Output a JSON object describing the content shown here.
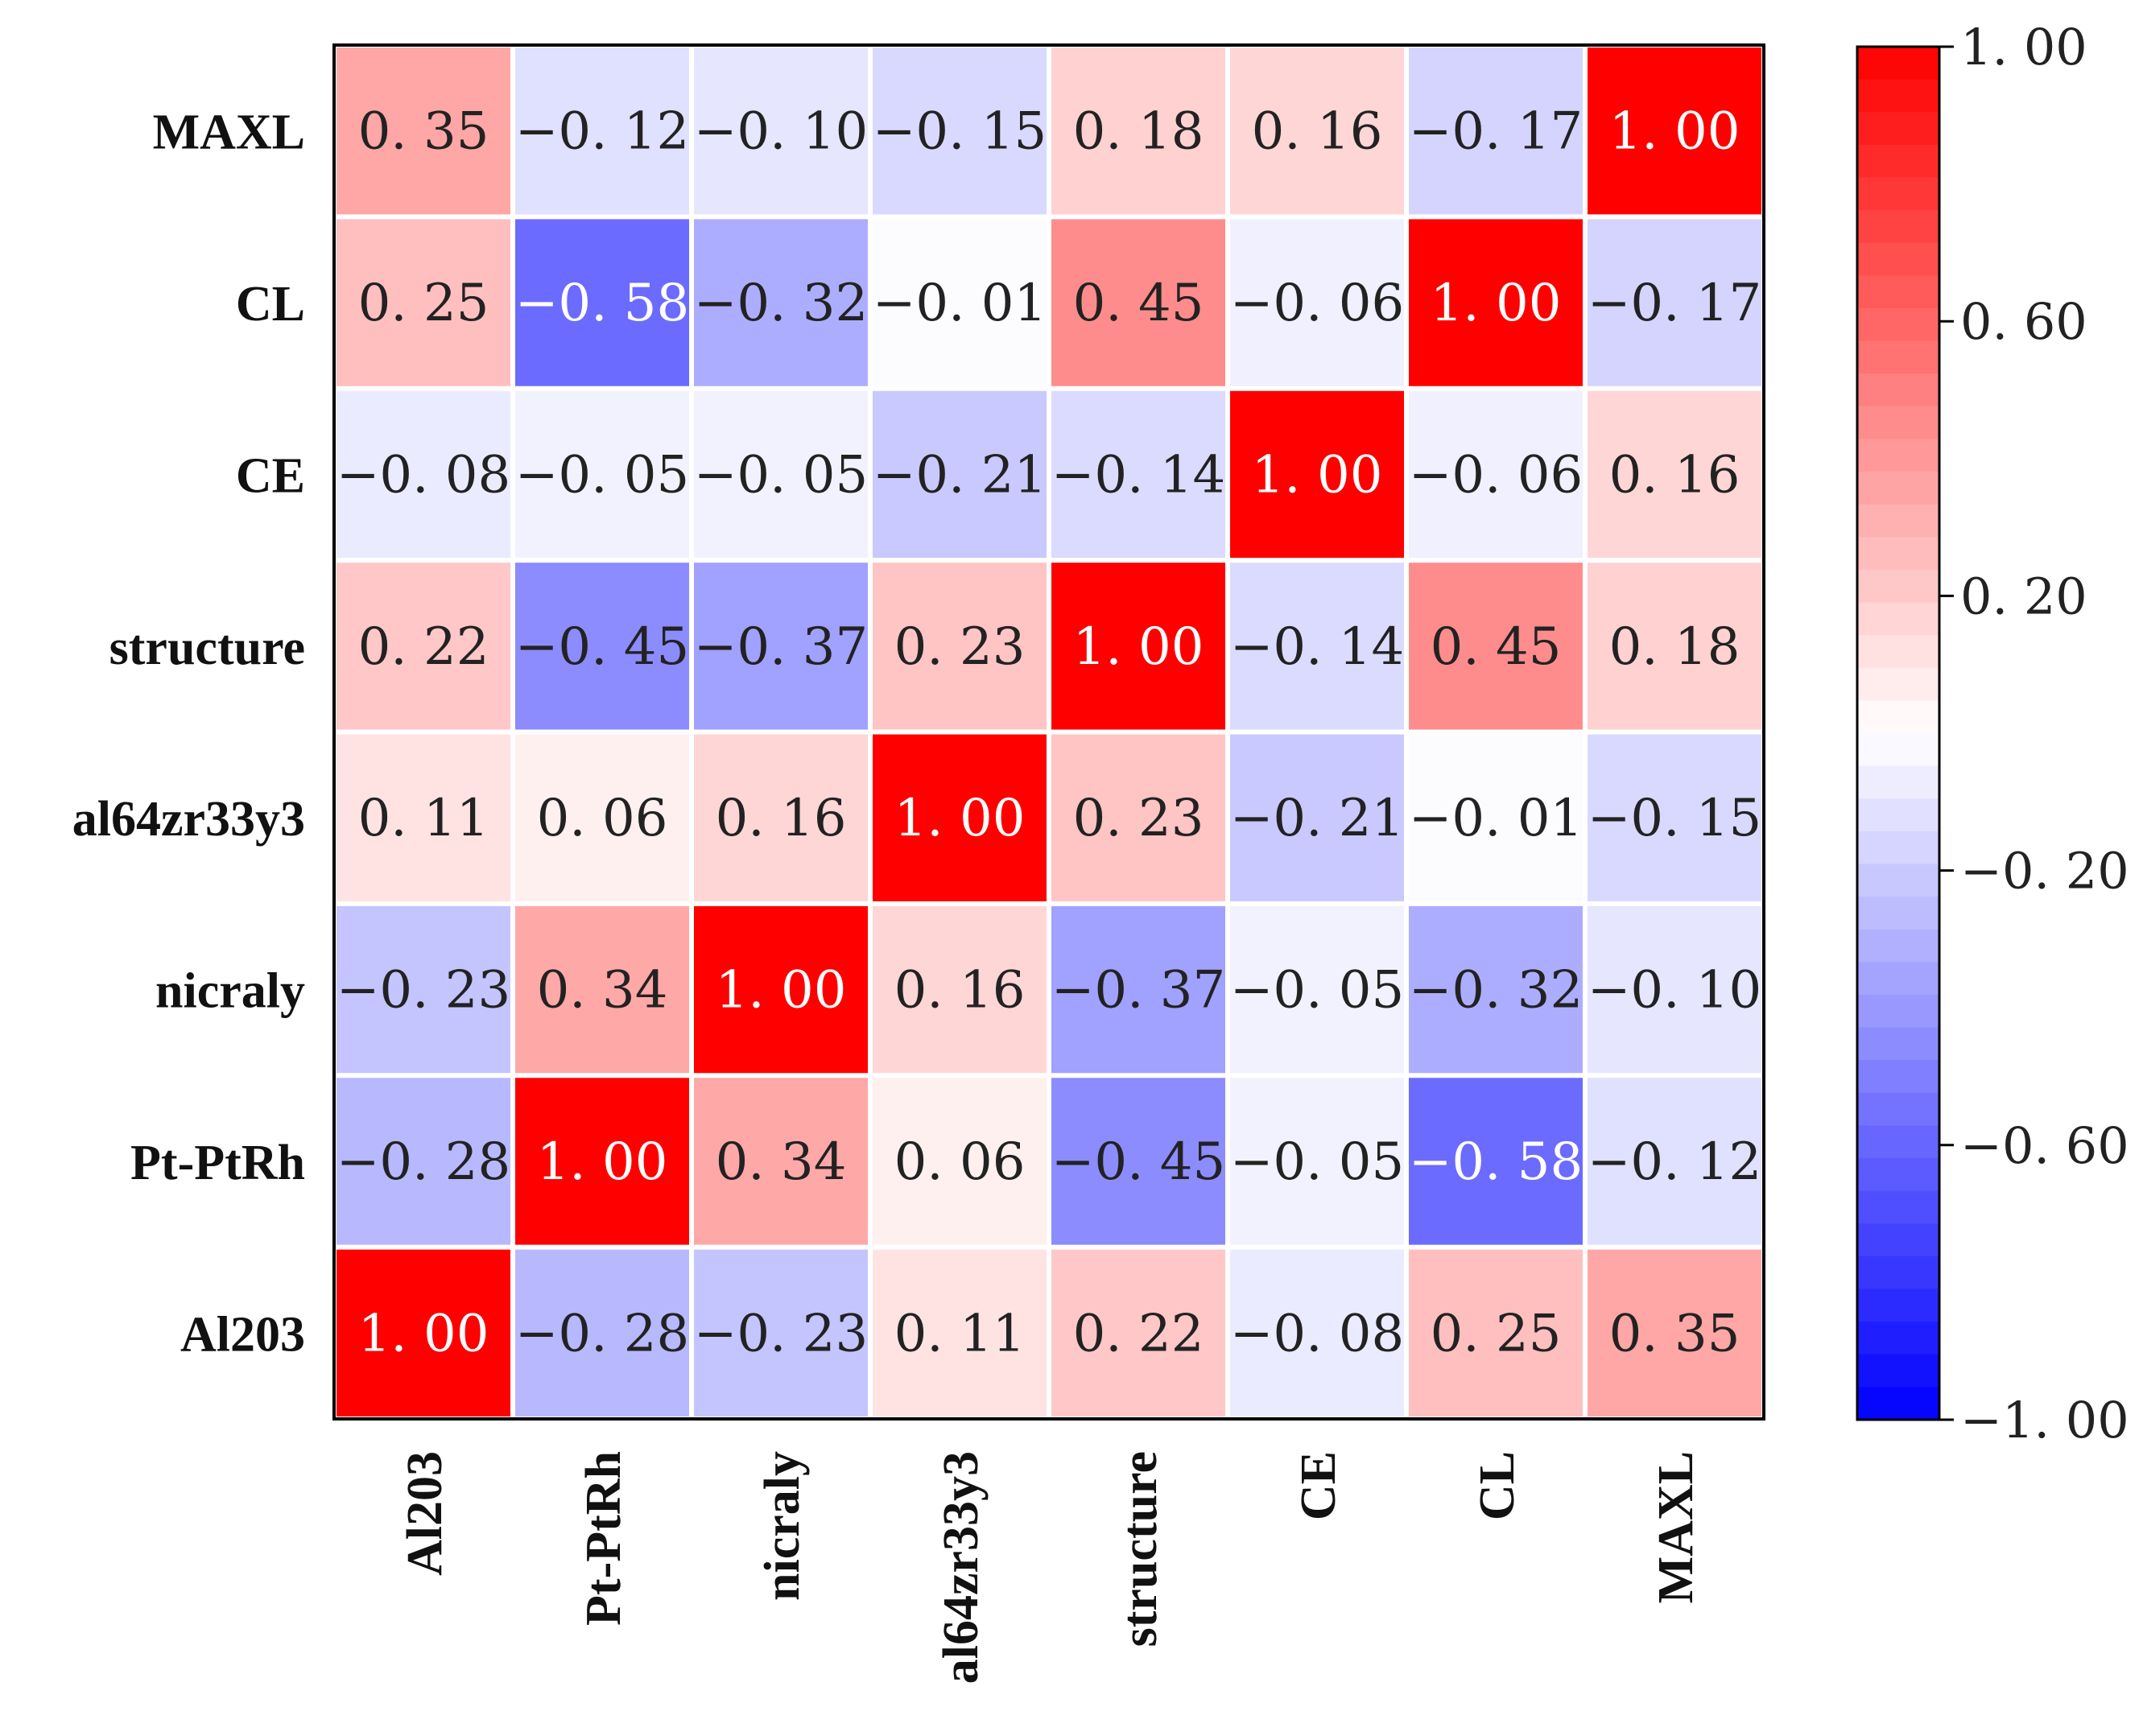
{
  "chart_data": {
    "type": "heatmap",
    "title": "",
    "xlabel": "",
    "ylabel": "",
    "labels": [
      "Al203",
      "Pt-PtRh",
      "nicraly",
      "al64zr33y3",
      "structure",
      "CE",
      "CL",
      "MAXL"
    ],
    "row_order_top_to_bottom": [
      "MAXL",
      "CL",
      "CE",
      "structure",
      "al64zr33y3",
      "nicraly",
      "Pt-PtRh",
      "Al203"
    ],
    "matrix": [
      [
        1.0,
        -0.28,
        -0.23,
        0.11,
        0.22,
        -0.08,
        0.25,
        0.35
      ],
      [
        -0.28,
        1.0,
        0.34,
        0.06,
        -0.45,
        -0.05,
        -0.58,
        -0.12
      ],
      [
        -0.23,
        0.34,
        1.0,
        0.16,
        -0.37,
        -0.05,
        -0.32,
        -0.1
      ],
      [
        0.11,
        0.06,
        0.16,
        1.0,
        0.23,
        -0.21,
        -0.01,
        -0.15
      ],
      [
        0.22,
        -0.45,
        -0.37,
        0.23,
        1.0,
        -0.14,
        0.45,
        0.18
      ],
      [
        -0.08,
        -0.05,
        -0.05,
        -0.21,
        -0.14,
        1.0,
        -0.06,
        0.16
      ],
      [
        0.25,
        -0.58,
        -0.32,
        -0.01,
        0.45,
        -0.06,
        1.0,
        -0.17
      ],
      [
        0.35,
        -0.12,
        -0.1,
        -0.15,
        0.18,
        0.16,
        -0.17,
        1.0
      ]
    ],
    "colorbar": {
      "range": [
        -1.0,
        1.0
      ],
      "ticks": [
        1.0,
        0.6,
        0.2,
        -0.2,
        -0.6,
        -1.0
      ],
      "tick_labels": [
        "1. 00",
        "0. 60",
        "0. 20",
        "−0. 20",
        "−0. 60",
        "−1. 00"
      ],
      "colors": {
        "low": "#0000ff",
        "mid": "#ffffff",
        "high": "#ff0000"
      }
    },
    "grid": true,
    "legend": "colorbar-right"
  }
}
